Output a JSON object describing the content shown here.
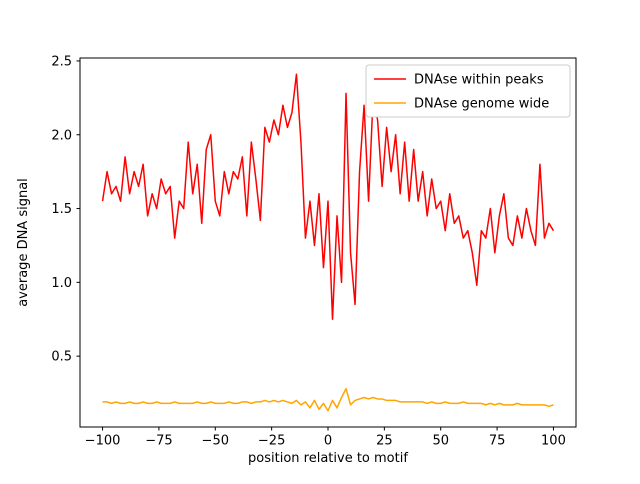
{
  "chart_data": {
    "type": "line",
    "title": "",
    "xlabel": "position relative to motif",
    "ylabel": "average DNA signal",
    "xlim": [
      -110,
      110
    ],
    "ylim": [
      0.02,
      2.52
    ],
    "xticks": [
      -100,
      -75,
      -50,
      -25,
      0,
      25,
      50,
      75,
      100
    ],
    "yticks": [
      0.5,
      1.0,
      1.5,
      2.0,
      2.5
    ],
    "grid": false,
    "legend_position": "upper right",
    "x": [
      -100,
      -98,
      -96,
      -94,
      -92,
      -90,
      -88,
      -86,
      -84,
      -82,
      -80,
      -78,
      -76,
      -74,
      -72,
      -70,
      -68,
      -66,
      -64,
      -62,
      -60,
      -58,
      -56,
      -54,
      -52,
      -50,
      -48,
      -46,
      -44,
      -42,
      -40,
      -38,
      -36,
      -34,
      -32,
      -30,
      -28,
      -26,
      -24,
      -22,
      -20,
      -18,
      -16,
      -14,
      -12,
      -10,
      -8,
      -6,
      -4,
      -2,
      0,
      2,
      4,
      6,
      8,
      10,
      12,
      14,
      16,
      18,
      20,
      22,
      24,
      26,
      28,
      30,
      32,
      34,
      36,
      38,
      40,
      42,
      44,
      46,
      48,
      50,
      52,
      54,
      56,
      58,
      60,
      62,
      64,
      66,
      68,
      70,
      72,
      74,
      76,
      78,
      80,
      82,
      84,
      86,
      88,
      90,
      92,
      94,
      96,
      98,
      100
    ],
    "series": [
      {
        "name": "DNAse within peaks",
        "color": "#ff0000",
        "values": [
          1.55,
          1.75,
          1.6,
          1.65,
          1.55,
          1.85,
          1.6,
          1.75,
          1.65,
          1.8,
          1.45,
          1.6,
          1.5,
          1.7,
          1.6,
          1.65,
          1.3,
          1.55,
          1.5,
          1.95,
          1.6,
          1.8,
          1.4,
          1.9,
          2.0,
          1.55,
          1.45,
          1.75,
          1.6,
          1.75,
          1.7,
          1.85,
          1.45,
          1.95,
          1.7,
          1.42,
          2.05,
          1.95,
          2.1,
          2.0,
          2.2,
          2.05,
          2.15,
          2.41,
          1.95,
          1.3,
          1.55,
          1.25,
          1.6,
          1.1,
          1.55,
          0.75,
          1.45,
          1.0,
          2.28,
          1.2,
          0.85,
          1.75,
          2.2,
          1.55,
          2.25,
          2.1,
          1.65,
          2.05,
          1.75,
          2.0,
          1.6,
          1.95,
          1.55,
          1.9,
          1.55,
          1.75,
          1.45,
          1.7,
          1.5,
          1.55,
          1.35,
          1.6,
          1.4,
          1.45,
          1.3,
          1.35,
          1.2,
          0.98,
          1.35,
          1.3,
          1.5,
          1.2,
          1.45,
          1.6,
          1.3,
          1.25,
          1.45,
          1.3,
          1.5,
          1.35,
          1.25,
          1.8,
          1.3,
          1.4,
          1.35
        ]
      },
      {
        "name": "DNAse genome wide",
        "color": "#ffa500",
        "values": [
          0.19,
          0.19,
          0.18,
          0.19,
          0.18,
          0.18,
          0.19,
          0.18,
          0.18,
          0.19,
          0.18,
          0.18,
          0.19,
          0.18,
          0.18,
          0.18,
          0.19,
          0.18,
          0.18,
          0.18,
          0.18,
          0.19,
          0.18,
          0.18,
          0.19,
          0.18,
          0.18,
          0.18,
          0.19,
          0.18,
          0.18,
          0.19,
          0.19,
          0.18,
          0.19,
          0.19,
          0.2,
          0.19,
          0.2,
          0.19,
          0.2,
          0.19,
          0.18,
          0.2,
          0.17,
          0.19,
          0.15,
          0.2,
          0.14,
          0.18,
          0.13,
          0.2,
          0.15,
          0.22,
          0.28,
          0.17,
          0.2,
          0.21,
          0.22,
          0.21,
          0.22,
          0.21,
          0.21,
          0.2,
          0.2,
          0.2,
          0.19,
          0.19,
          0.19,
          0.19,
          0.19,
          0.19,
          0.18,
          0.19,
          0.18,
          0.18,
          0.19,
          0.18,
          0.18,
          0.18,
          0.19,
          0.18,
          0.18,
          0.18,
          0.18,
          0.17,
          0.18,
          0.17,
          0.18,
          0.17,
          0.17,
          0.17,
          0.18,
          0.17,
          0.17,
          0.17,
          0.17,
          0.17,
          0.17,
          0.16,
          0.17
        ]
      }
    ]
  }
}
